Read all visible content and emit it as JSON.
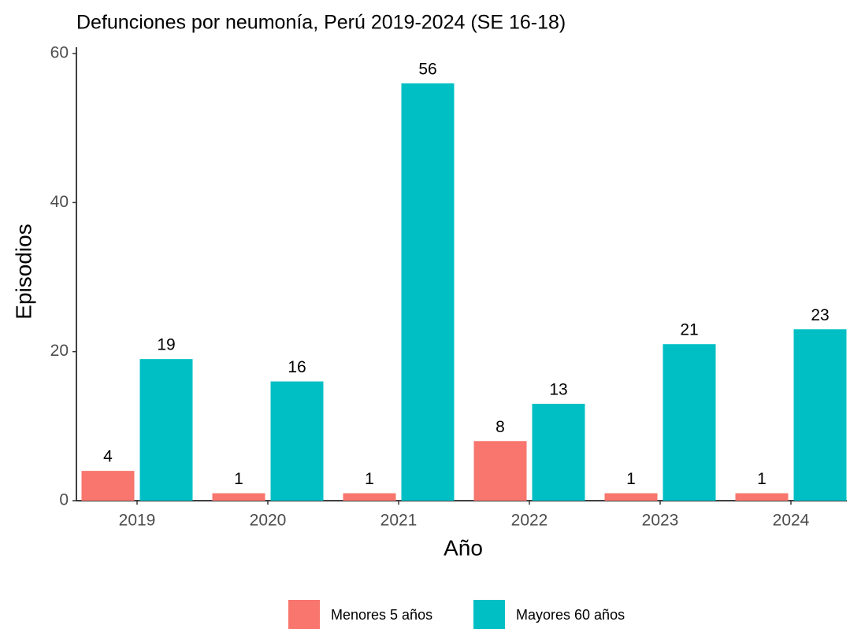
{
  "chart_data": {
    "type": "bar",
    "title": "Defunciones por neumonía, Perú 2019-2024 (SE 16-18)",
    "x_label": "Año",
    "y_label": "Episodios",
    "categories": [
      "2019",
      "2020",
      "2021",
      "2022",
      "2023",
      "2024"
    ],
    "series": [
      {
        "name": "Menores 5 años",
        "color": "#f8766d",
        "values": [
          4,
          1,
          1,
          8,
          1,
          1
        ]
      },
      {
        "name": "Mayores 60 años",
        "color": "#00bfc4",
        "values": [
          19,
          16,
          56,
          13,
          21,
          23
        ]
      }
    ],
    "ylim": [
      0,
      60
    ],
    "yticks": [
      0,
      20,
      40,
      60
    ],
    "legend": "bottom",
    "grid": false
  }
}
